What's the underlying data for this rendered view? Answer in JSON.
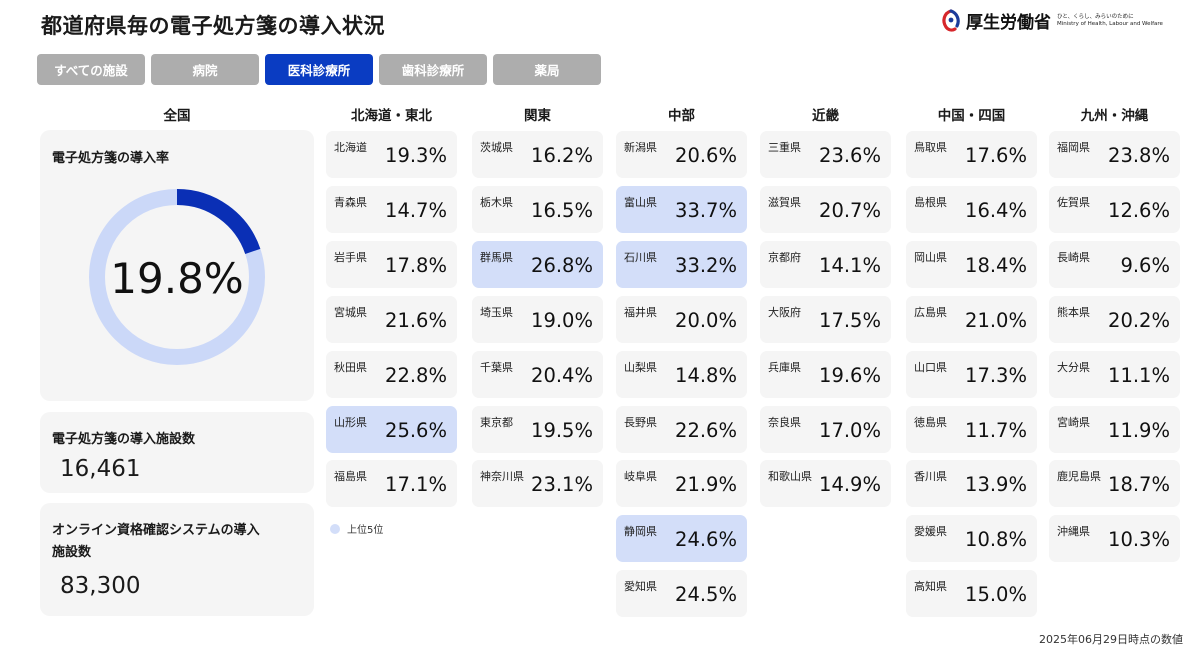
{
  "header": {
    "title": "都道府県毎の電子処方箋の導入状況",
    "logo_name": "厚生労働省",
    "logo_tagline_jp": "ひと、くらし、みらいのために",
    "logo_tagline_en": "Ministry of Health, Labour and Welfare"
  },
  "tabs": [
    {
      "label": "すべての施設",
      "active": false
    },
    {
      "label": "病院",
      "active": false
    },
    {
      "label": "医科診療所",
      "active": true
    },
    {
      "label": "歯科診療所",
      "active": false
    },
    {
      "label": "薬局",
      "active": false
    }
  ],
  "national": {
    "heading": "全国",
    "rate_label": "電子処方箋の導入率",
    "rate_value": "19.8%",
    "rate_fraction": 0.198,
    "facilities_label": "電子処方箋の導入施設数",
    "facilities_value": "16,461",
    "online_label_line1": "オンライン資格確認システムの導入",
    "online_label_line2": "施設数",
    "online_value": "83,300"
  },
  "colors": {
    "active_tab": "#0a3cc2",
    "donut_fill": "#0a2fb5",
    "donut_track": "#cbd8f8",
    "top5_highlight": "#d3def9"
  },
  "regions": [
    {
      "name": "北海道・東北",
      "prefectures": [
        {
          "name": "北海道",
          "value": "19.3%",
          "top5": false
        },
        {
          "name": "青森県",
          "value": "14.7%",
          "top5": false
        },
        {
          "name": "岩手県",
          "value": "17.8%",
          "top5": false
        },
        {
          "name": "宮城県",
          "value": "21.6%",
          "top5": false
        },
        {
          "name": "秋田県",
          "value": "22.8%",
          "top5": false
        },
        {
          "name": "山形県",
          "value": "25.6%",
          "top5": true
        },
        {
          "name": "福島県",
          "value": "17.1%",
          "top5": false
        }
      ]
    },
    {
      "name": "関東",
      "prefectures": [
        {
          "name": "茨城県",
          "value": "16.2%",
          "top5": false
        },
        {
          "name": "栃木県",
          "value": "16.5%",
          "top5": false
        },
        {
          "name": "群馬県",
          "value": "26.8%",
          "top5": true
        },
        {
          "name": "埼玉県",
          "value": "19.0%",
          "top5": false
        },
        {
          "name": "千葉県",
          "value": "20.4%",
          "top5": false
        },
        {
          "name": "東京都",
          "value": "19.5%",
          "top5": false
        },
        {
          "name": "神奈川県",
          "value": "23.1%",
          "top5": false
        }
      ]
    },
    {
      "name": "中部",
      "prefectures": [
        {
          "name": "新潟県",
          "value": "20.6%",
          "top5": false
        },
        {
          "name": "富山県",
          "value": "33.7%",
          "top5": true
        },
        {
          "name": "石川県",
          "value": "33.2%",
          "top5": true
        },
        {
          "name": "福井県",
          "value": "20.0%",
          "top5": false
        },
        {
          "name": "山梨県",
          "value": "14.8%",
          "top5": false
        },
        {
          "name": "長野県",
          "value": "22.6%",
          "top5": false
        },
        {
          "name": "岐阜県",
          "value": "21.9%",
          "top5": false
        },
        {
          "name": "静岡県",
          "value": "24.6%",
          "top5": true
        },
        {
          "name": "愛知県",
          "value": "24.5%",
          "top5": false
        }
      ]
    },
    {
      "name": "近畿",
      "prefectures": [
        {
          "name": "三重県",
          "value": "23.6%",
          "top5": false
        },
        {
          "name": "滋賀県",
          "value": "20.7%",
          "top5": false
        },
        {
          "name": "京都府",
          "value": "14.1%",
          "top5": false
        },
        {
          "name": "大阪府",
          "value": "17.5%",
          "top5": false
        },
        {
          "name": "兵庫県",
          "value": "19.6%",
          "top5": false
        },
        {
          "name": "奈良県",
          "value": "17.0%",
          "top5": false
        },
        {
          "name": "和歌山県",
          "value": "14.9%",
          "top5": false
        }
      ]
    },
    {
      "name": "中国・四国",
      "prefectures": [
        {
          "name": "鳥取県",
          "value": "17.6%",
          "top5": false
        },
        {
          "name": "島根県",
          "value": "16.4%",
          "top5": false
        },
        {
          "name": "岡山県",
          "value": "18.4%",
          "top5": false
        },
        {
          "name": "広島県",
          "value": "21.0%",
          "top5": false
        },
        {
          "name": "山口県",
          "value": "17.3%",
          "top5": false
        },
        {
          "name": "徳島県",
          "value": "11.7%",
          "top5": false
        },
        {
          "name": "香川県",
          "value": "13.9%",
          "top5": false
        },
        {
          "name": "愛媛県",
          "value": "10.8%",
          "top5": false
        },
        {
          "name": "高知県",
          "value": "15.0%",
          "top5": false
        }
      ]
    },
    {
      "name": "九州・沖縄",
      "prefectures": [
        {
          "name": "福岡県",
          "value": "23.8%",
          "top5": false
        },
        {
          "name": "佐賀県",
          "value": "12.6%",
          "top5": false
        },
        {
          "name": "長崎県",
          "value": "9.6%",
          "top5": false
        },
        {
          "name": "熊本県",
          "value": "20.2%",
          "top5": false
        },
        {
          "name": "大分県",
          "value": "11.1%",
          "top5": false
        },
        {
          "name": "宮崎県",
          "value": "11.9%",
          "top5": false
        },
        {
          "name": "鹿児島県",
          "value": "18.7%",
          "top5": false
        },
        {
          "name": "沖縄県",
          "value": "10.3%",
          "top5": false
        }
      ]
    }
  ],
  "legend": {
    "label": "上位5位"
  },
  "footnote": "2025年06月29日時点の数値"
}
